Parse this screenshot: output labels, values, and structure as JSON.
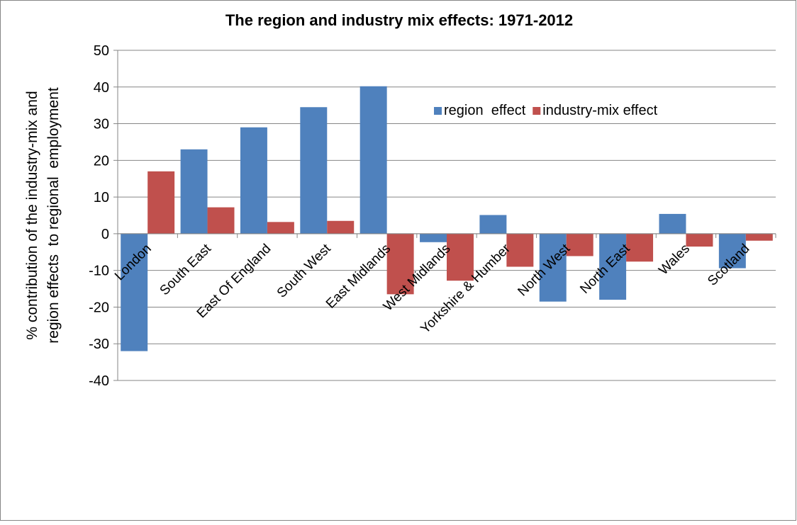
{
  "chart_data": {
    "type": "bar",
    "title": "The region and industry mix effects: 1971-2012",
    "y_label": [
      "% contribution of the industry-mix and",
      "region effects  to regional  employment"
    ],
    "categories": [
      "London",
      "South East",
      "East Of England",
      "South West",
      "East Midlands",
      "West Midlands",
      "Yorkshire & Humber",
      "North West",
      "North East",
      "Wales",
      "Scotland"
    ],
    "series": [
      {
        "name": "region  effect",
        "color": "#4f81bd",
        "values": [
          -32,
          23,
          29,
          34.5,
          40.2,
          -2.3,
          5.1,
          -18.5,
          -18,
          5.4,
          -9.4
        ]
      },
      {
        "name": "industry-mix effect",
        "color": "#c0504d",
        "values": [
          17,
          7.2,
          3.2,
          3.5,
          -16.5,
          -12.8,
          -9,
          -6.1,
          -7.6,
          -3.5,
          -1.9
        ]
      }
    ],
    "ylim": [
      -40,
      50
    ],
    "yticks": [
      -40,
      -30,
      -20,
      -10,
      0,
      10,
      20,
      30,
      40,
      50
    ],
    "grid": true,
    "legend": "upper-right"
  }
}
